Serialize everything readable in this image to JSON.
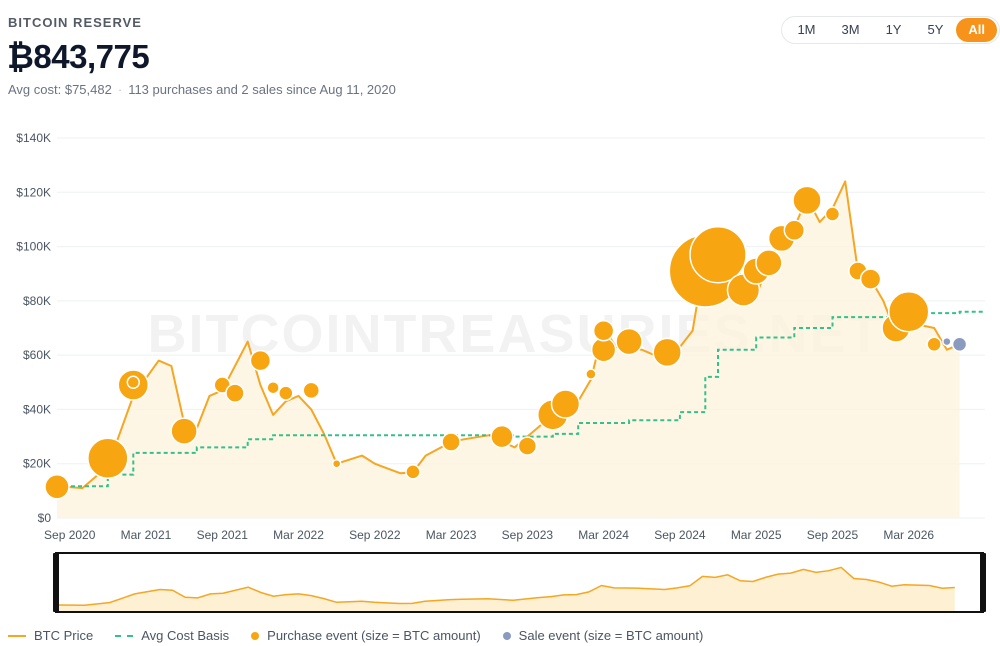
{
  "header": {
    "label": "BITCOIN RESERVE",
    "holdings": "₿843,775",
    "avg_cost": "Avg cost: $75,482",
    "separator": "·",
    "summary": "113 purchases and 2 sales since Aug 11, 2020"
  },
  "range_buttons": [
    {
      "label": "1M",
      "active": false
    },
    {
      "label": "3M",
      "active": false
    },
    {
      "label": "1Y",
      "active": false
    },
    {
      "label": "5Y",
      "active": false
    },
    {
      "label": "All",
      "active": true
    }
  ],
  "watermark": "BITCOINTREASURIES.NET",
  "colors": {
    "price": "#f5a623",
    "cost_basis": "#34c08a",
    "purchase": "#f7a511",
    "sale": "#8a9bbf",
    "accent": "#f7931a"
  },
  "legend": [
    {
      "label": "BTC Price",
      "swatch": "line"
    },
    {
      "label": "Avg Cost Basis",
      "swatch": "dash"
    },
    {
      "label": "Purchase event (size = BTC amount)",
      "swatch": "dot-purchase"
    },
    {
      "label": "Sale event (size = BTC amount)",
      "swatch": "dot-sale"
    }
  ],
  "chart_data": {
    "type": "line",
    "y_ticks": [
      "$140K",
      "$120K",
      "$100K",
      "$80K",
      "$60K",
      "$40K",
      "$20K",
      "$0"
    ],
    "y_values": [
      140000,
      120000,
      100000,
      80000,
      60000,
      40000,
      20000,
      0
    ],
    "ylim": [
      0,
      140000
    ],
    "x_ticks": [
      "Sep 2020",
      "Mar 2021",
      "Sep 2021",
      "Mar 2022",
      "Sep 2022",
      "Mar 2023",
      "Sep 2023",
      "Mar 2024",
      "Sep 2024",
      "Mar 2025",
      "Sep 2025",
      "Mar 2026"
    ],
    "x_tick_dates": [
      "2020-09",
      "2021-03",
      "2021-09",
      "2022-03",
      "2022-09",
      "2023-03",
      "2023-09",
      "2024-03",
      "2024-09",
      "2025-03",
      "2025-09",
      "2026-03"
    ],
    "xlim": [
      "2020-08",
      "2026-09"
    ],
    "price": [
      [
        "2020-08",
        11800
      ],
      [
        "2020-10",
        11000
      ],
      [
        "2020-12",
        19000
      ],
      [
        "2021-01",
        32000
      ],
      [
        "2021-02",
        45000
      ],
      [
        "2021-04",
        58000
      ],
      [
        "2021-05",
        56000
      ],
      [
        "2021-06",
        35000
      ],
      [
        "2021-07",
        33000
      ],
      [
        "2021-08",
        45000
      ],
      [
        "2021-09",
        47000
      ],
      [
        "2021-11",
        65000
      ],
      [
        "2021-12",
        49000
      ],
      [
        "2022-01",
        38000
      ],
      [
        "2022-02",
        43000
      ],
      [
        "2022-03",
        45000
      ],
      [
        "2022-04",
        40000
      ],
      [
        "2022-05",
        31000
      ],
      [
        "2022-06",
        20000
      ],
      [
        "2022-08",
        23000
      ],
      [
        "2022-09",
        20000
      ],
      [
        "2022-11",
        16500
      ],
      [
        "2022-12",
        16800
      ],
      [
        "2023-01",
        23000
      ],
      [
        "2023-03",
        28000
      ],
      [
        "2023-04",
        29000
      ],
      [
        "2023-06",
        30500
      ],
      [
        "2023-08",
        26000
      ],
      [
        "2023-10",
        34000
      ],
      [
        "2023-11",
        37000
      ],
      [
        "2023-12",
        42000
      ],
      [
        "2024-01",
        43000
      ],
      [
        "2024-02",
        51000
      ],
      [
        "2024-03",
        70000
      ],
      [
        "2024-04",
        63000
      ],
      [
        "2024-06",
        62000
      ],
      [
        "2024-08",
        58000
      ],
      [
        "2024-09",
        63000
      ],
      [
        "2024-10",
        69000
      ],
      [
        "2024-11",
        97000
      ],
      [
        "2024-12",
        94000
      ],
      [
        "2025-01",
        102000
      ],
      [
        "2025-02",
        84000
      ],
      [
        "2025-03",
        82000
      ],
      [
        "2025-04",
        94000
      ],
      [
        "2025-05",
        104000
      ],
      [
        "2025-06",
        107000
      ],
      [
        "2025-07",
        118000
      ],
      [
        "2025-08",
        109000
      ],
      [
        "2025-09",
        114000
      ],
      [
        "2025-10",
        124000
      ],
      [
        "2025-11",
        91000
      ],
      [
        "2025-12",
        88000
      ],
      [
        "2026-01",
        80000
      ],
      [
        "2026-02",
        68000
      ],
      [
        "2026-03",
        72000
      ],
      [
        "2026-05",
        70000
      ],
      [
        "2026-06",
        62000
      ],
      [
        "2026-07",
        64000
      ]
    ],
    "avg_cost_basis": [
      [
        "2020-08",
        11700
      ],
      [
        "2020-12",
        16000
      ],
      [
        "2021-02",
        24000
      ],
      [
        "2021-07",
        26000
      ],
      [
        "2021-11",
        29000
      ],
      [
        "2022-01",
        30500
      ],
      [
        "2023-08",
        30000
      ],
      [
        "2023-11",
        31000
      ],
      [
        "2024-01",
        35000
      ],
      [
        "2024-05",
        36000
      ],
      [
        "2024-09",
        39000
      ],
      [
        "2024-11",
        52000
      ],
      [
        "2024-12",
        62000
      ],
      [
        "2025-03",
        66500
      ],
      [
        "2025-06",
        70000
      ],
      [
        "2025-09",
        74000
      ],
      [
        "2026-03",
        75500
      ],
      [
        "2026-07",
        76000
      ],
      [
        "2026-09",
        76000
      ]
    ],
    "purchases": [
      [
        "2020-08",
        11500,
        12
      ],
      [
        "2020-12",
        22000,
        20
      ],
      [
        "2021-02",
        49000,
        15
      ],
      [
        "2021-02",
        50000,
        6
      ],
      [
        "2021-06",
        32000,
        13
      ],
      [
        "2021-09",
        49000,
        8
      ],
      [
        "2021-10",
        46000,
        9
      ],
      [
        "2021-12",
        58000,
        10
      ],
      [
        "2022-01",
        48000,
        6
      ],
      [
        "2022-02",
        46000,
        7
      ],
      [
        "2022-04",
        47000,
        8
      ],
      [
        "2022-06",
        20000,
        4
      ],
      [
        "2022-12",
        17000,
        7
      ],
      [
        "2023-03",
        28000,
        9
      ],
      [
        "2023-07",
        30000,
        11
      ],
      [
        "2023-09",
        26500,
        9
      ],
      [
        "2023-11",
        38000,
        15
      ],
      [
        "2023-12",
        42000,
        14
      ],
      [
        "2024-02",
        53000,
        5
      ],
      [
        "2024-03",
        62000,
        12
      ],
      [
        "2024-03",
        69000,
        10
      ],
      [
        "2024-05",
        65000,
        13
      ],
      [
        "2024-08",
        61000,
        14
      ],
      [
        "2024-11",
        91000,
        36
      ],
      [
        "2024-12",
        97000,
        28
      ],
      [
        "2025-02",
        84000,
        16
      ],
      [
        "2025-03",
        91000,
        13
      ],
      [
        "2025-04",
        94000,
        13
      ],
      [
        "2025-05",
        103000,
        13
      ],
      [
        "2025-06",
        106000,
        10
      ],
      [
        "2025-07",
        117000,
        14
      ],
      [
        "2025-09",
        112000,
        7
      ],
      [
        "2025-11",
        91000,
        9
      ],
      [
        "2025-12",
        88000,
        10
      ],
      [
        "2026-02",
        70000,
        14
      ],
      [
        "2026-03",
        76000,
        20
      ],
      [
        "2026-05",
        64000,
        7
      ]
    ],
    "sales": [
      [
        "2026-07",
        64000,
        7
      ],
      [
        "2026-06",
        65000,
        4
      ]
    ],
    "navigator_series": "price",
    "grid": true,
    "legend_position": "bottom"
  }
}
